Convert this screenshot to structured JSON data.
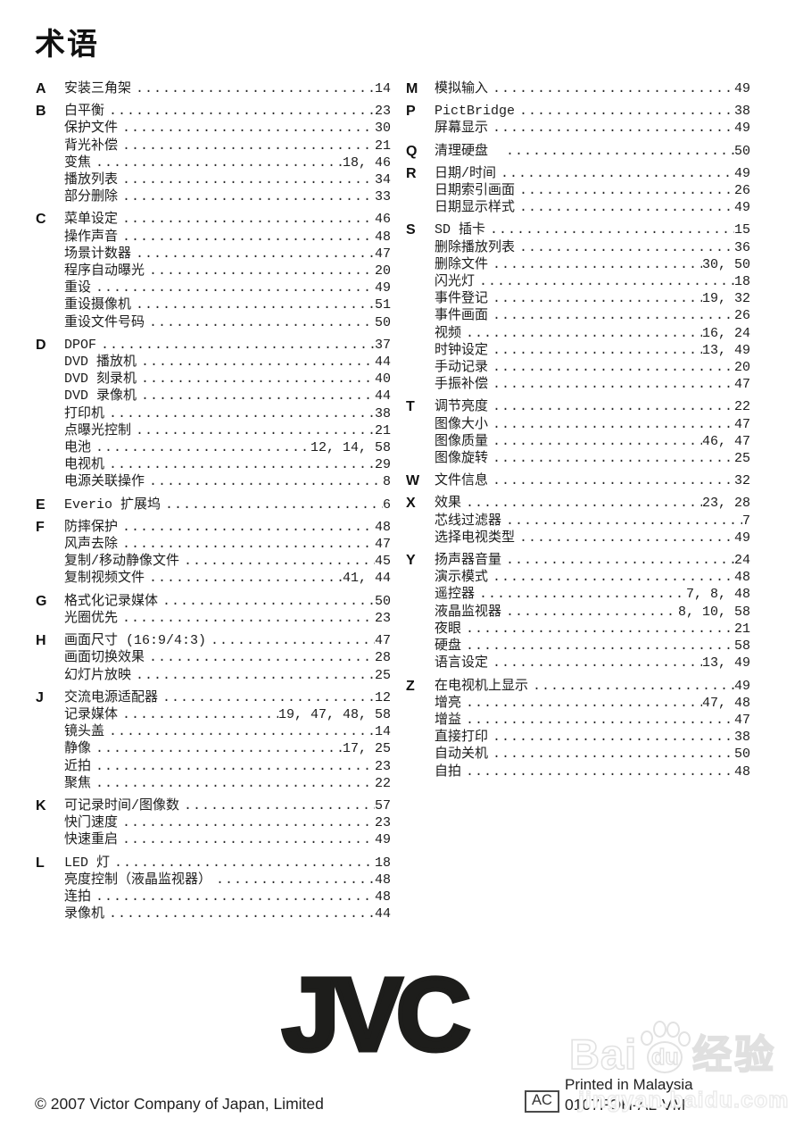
{
  "page": {
    "title": "术语"
  },
  "index": {
    "left_sections": [
      {
        "letter": "A",
        "entries": [
          {
            "label": "安装三角架",
            "pages": "14"
          }
        ]
      },
      {
        "letter": "B",
        "entries": [
          {
            "label": "白平衡",
            "pages": "23"
          },
          {
            "label": "保护文件",
            "pages": "30"
          },
          {
            "label": "背光补偿",
            "pages": "21"
          },
          {
            "label": "变焦",
            "pages": "18, 46"
          },
          {
            "label": "播放列表",
            "pages": "34"
          },
          {
            "label": "部分删除",
            "pages": "33"
          }
        ]
      },
      {
        "letter": "C",
        "entries": [
          {
            "label": "菜单设定",
            "pages": "46"
          },
          {
            "label": "操作声音",
            "pages": "48"
          },
          {
            "label": "场景计数器",
            "pages": "47"
          },
          {
            "label": "程序自动曝光",
            "pages": "20"
          },
          {
            "label": "重设",
            "pages": "49"
          },
          {
            "label": "重设摄像机",
            "pages": "51"
          },
          {
            "label": "重设文件号码",
            "pages": "50"
          }
        ]
      },
      {
        "letter": "D",
        "entries": [
          {
            "label": "DPOF",
            "pages": "37"
          },
          {
            "label": "DVD 播放机",
            "pages": "44"
          },
          {
            "label": "DVD 刻录机",
            "pages": "40"
          },
          {
            "label": "DVD 录像机",
            "pages": "44"
          },
          {
            "label": "打印机",
            "pages": "38"
          },
          {
            "label": "点曝光控制",
            "pages": "21"
          },
          {
            "label": "电池",
            "pages": "12, 14, 58"
          },
          {
            "label": "电视机",
            "pages": "29"
          },
          {
            "label": "电源关联操作",
            "pages": "8"
          }
        ]
      },
      {
        "letter": "E",
        "entries": [
          {
            "label": "Everio 扩展坞",
            "pages": "6"
          }
        ]
      },
      {
        "letter": "F",
        "entries": [
          {
            "label": "防摔保护",
            "pages": "48"
          },
          {
            "label": "风声去除",
            "pages": "47"
          },
          {
            "label": "复制/移动静像文件",
            "pages": "45"
          },
          {
            "label": "复制视频文件",
            "pages": "41, 44"
          }
        ]
      },
      {
        "letter": "G",
        "entries": [
          {
            "label": "格式化记录媒体",
            "pages": "50"
          },
          {
            "label": "光圈优先",
            "pages": "23"
          }
        ]
      },
      {
        "letter": "H",
        "entries": [
          {
            "label": "画面尺寸 (16:9/4:3)",
            "pages": "47"
          },
          {
            "label": "画面切换效果",
            "pages": "28"
          },
          {
            "label": "幻灯片放映",
            "pages": "25"
          }
        ]
      },
      {
        "letter": "J",
        "entries": [
          {
            "label": "交流电源适配器",
            "pages": "12"
          },
          {
            "label": "记录媒体",
            "pages": "19, 47, 48, 58"
          },
          {
            "label": "镜头盖",
            "pages": "14"
          },
          {
            "label": "静像",
            "pages": "17, 25"
          },
          {
            "label": "近拍",
            "pages": "23"
          },
          {
            "label": "聚焦",
            "pages": "22"
          }
        ]
      },
      {
        "letter": "K",
        "entries": [
          {
            "label": "可记录时间/图像数",
            "pages": "57"
          },
          {
            "label": "快门速度",
            "pages": "23"
          },
          {
            "label": "快速重启",
            "pages": "49"
          }
        ]
      },
      {
        "letter": "L",
        "entries": [
          {
            "label": "LED 灯",
            "pages": "18"
          },
          {
            "label": "亮度控制（液晶监视器）",
            "pages": "48"
          },
          {
            "label": "连拍",
            "pages": "48"
          },
          {
            "label": "录像机",
            "pages": "44"
          }
        ]
      }
    ],
    "right_sections": [
      {
        "letter": "M",
        "entries": [
          {
            "label": "模拟输入",
            "pages": "49"
          }
        ]
      },
      {
        "letter": "P",
        "entries": [
          {
            "label": "PictBridge",
            "pages": "38"
          },
          {
            "label": "屏幕显示",
            "pages": "49"
          }
        ]
      },
      {
        "letter": "Q",
        "entries": [
          {
            "label": "清理硬盘　",
            "pages": "50"
          }
        ]
      },
      {
        "letter": "R",
        "entries": [
          {
            "label": "日期/时间",
            "pages": "49"
          },
          {
            "label": "日期索引画面",
            "pages": "26"
          },
          {
            "label": "日期显示样式",
            "pages": "49"
          }
        ]
      },
      {
        "letter": "S",
        "entries": [
          {
            "label": "SD 插卡",
            "pages": "15"
          },
          {
            "label": "删除播放列表",
            "pages": "36"
          },
          {
            "label": "删除文件",
            "pages": "30, 50"
          },
          {
            "label": "闪光灯",
            "pages": "18"
          },
          {
            "label": "事件登记",
            "pages": "19, 32"
          },
          {
            "label": "事件画面",
            "pages": "26"
          },
          {
            "label": "视频",
            "pages": "16, 24"
          },
          {
            "label": "时钟设定",
            "pages": "13, 49"
          },
          {
            "label": "手动记录",
            "pages": "20"
          },
          {
            "label": "手振补偿",
            "pages": "47"
          }
        ]
      },
      {
        "letter": "T",
        "entries": [
          {
            "label": "调节亮度",
            "pages": "22"
          },
          {
            "label": "图像大小",
            "pages": "47"
          },
          {
            "label": "图像质量",
            "pages": "46, 47"
          },
          {
            "label": "图像旋转",
            "pages": "25"
          }
        ]
      },
      {
        "letter": "W",
        "entries": [
          {
            "label": "文件信息",
            "pages": "32"
          }
        ]
      },
      {
        "letter": "X",
        "entries": [
          {
            "label": "效果",
            "pages": "23, 28"
          },
          {
            "label": "芯线过滤器",
            "pages": "7"
          },
          {
            "label": "选择电视类型",
            "pages": "49"
          }
        ]
      },
      {
        "letter": "Y",
        "entries": [
          {
            "label": "扬声器音量",
            "pages": "24"
          },
          {
            "label": "演示模式",
            "pages": "48"
          },
          {
            "label": "遥控器",
            "pages": "7, 8, 48"
          },
          {
            "label": "液晶监视器",
            "pages": "8, 10, 58"
          },
          {
            "label": "夜眼",
            "pages": "21"
          },
          {
            "label": "硬盘",
            "pages": "58"
          },
          {
            "label": "语言设定",
            "pages": "13, 49"
          }
        ]
      },
      {
        "letter": "Z",
        "entries": [
          {
            "label": "在电视机上显示",
            "pages": "49"
          },
          {
            "label": "增亮",
            "pages": "47, 48"
          },
          {
            "label": "增益",
            "pages": "47"
          },
          {
            "label": "直接打印",
            "pages": "38"
          },
          {
            "label": "自动关机",
            "pages": "50"
          },
          {
            "label": "自拍",
            "pages": "48"
          }
        ]
      }
    ]
  },
  "footer": {
    "logo_text": "JVC",
    "copyright": "© 2007 Victor Company of Japan, Limited",
    "ac_label": "AC",
    "printed_in": "Printed in Malaysia",
    "part_number": "0107FOH-AL-VM"
  },
  "watermark": {
    "bai": "Bai",
    "du": "du",
    "cn": "经验",
    "url": "jingyan.baidu.com",
    "color": "#e2e2e2"
  }
}
